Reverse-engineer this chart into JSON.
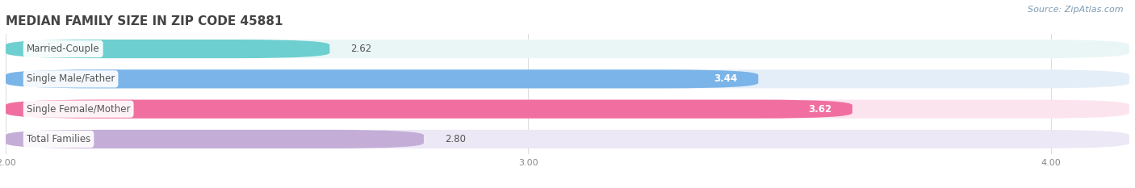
{
  "title": "MEDIAN FAMILY SIZE IN ZIP CODE 45881",
  "source": "Source: ZipAtlas.com",
  "categories": [
    "Married-Couple",
    "Single Male/Father",
    "Single Female/Mother",
    "Total Families"
  ],
  "values": [
    2.62,
    3.44,
    3.62,
    2.8
  ],
  "bar_colors": [
    "#6dcfcf",
    "#7ab4e8",
    "#f06fa0",
    "#c4aed8"
  ],
  "bar_bg_colors": [
    "#eaf6f6",
    "#e4eef8",
    "#fce4ef",
    "#ede8f5"
  ],
  "value_label_colors": [
    "#555555",
    "#ffffff",
    "#ffffff",
    "#555555"
  ],
  "xlim": [
    2.0,
    4.15
  ],
  "xticks": [
    2.0,
    3.0,
    4.0
  ],
  "title_fontsize": 11,
  "label_fontsize": 8.5,
  "value_fontsize": 8.5,
  "source_fontsize": 8,
  "background_color": "#ffffff",
  "title_color": "#444444",
  "source_color": "#7a9bb5",
  "label_text_color": "#555555",
  "tick_color": "#888888",
  "grid_color": "#dddddd"
}
